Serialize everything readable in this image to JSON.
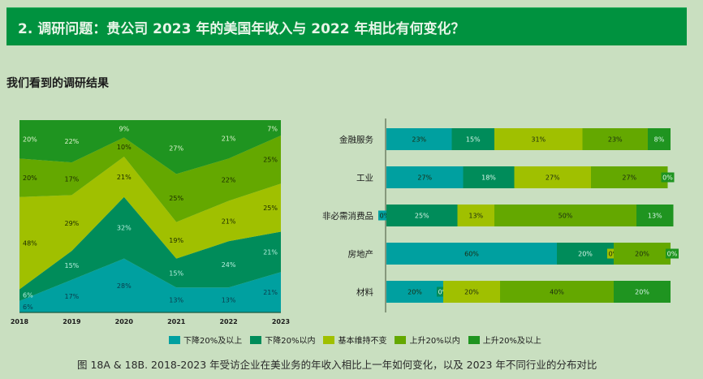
{
  "header": {
    "title": "2. 调研问题：贵公司 2023 年的美国年收入与 2022 年相比有何变化？"
  },
  "subtitle": "我们看到的调研结果",
  "legend": [
    {
      "label": "下降20%及以上",
      "color": "#00a0a0"
    },
    {
      "label": "下降20%以内",
      "color": "#008c5a"
    },
    {
      "label": "基本维持不变",
      "color": "#a0c000"
    },
    {
      "label": "上升20%以内",
      "color": "#64a800"
    },
    {
      "label": "上升20%及以上",
      "color": "#1f9420"
    }
  ],
  "caption": "图 18A & 18B. 2018-2023 年受访企业在美业务的年收入相比上一年如何变化，以及 2023 年不同行业的分布对比",
  "chart_data": [
    {
      "type": "area",
      "title": "",
      "xlabel": "",
      "ylabel": "",
      "x": [
        "2018",
        "2019",
        "2020",
        "2021",
        "2022",
        "2023"
      ],
      "ylim": [
        0,
        100
      ],
      "stacked": true,
      "series": [
        {
          "name": "下降20%及以上",
          "values": [
            6,
            17,
            28,
            13,
            13,
            21
          ],
          "label_color": "#0b3a4a"
        },
        {
          "name": "下降20%以内",
          "values": [
            6,
            15,
            32,
            15,
            24,
            21
          ],
          "label_color": "#b8f0e0"
        },
        {
          "name": "基本维持不变",
          "values": [
            48,
            29,
            21,
            19,
            21,
            25
          ],
          "label_color": "#1a2a00"
        },
        {
          "name": "上升20%以内",
          "values": [
            20,
            17,
            10,
            25,
            22,
            25
          ],
          "label_color": "#1a2a00"
        },
        {
          "name": "上升20%及以上",
          "values": [
            20,
            22,
            9,
            27,
            21,
            7
          ],
          "label_color": "#e0f5d0"
        }
      ]
    },
    {
      "type": "bar",
      "orientation": "horizontal",
      "stacked": true,
      "categories": [
        "金融服务",
        "工业",
        "非必需消费品",
        "房地产",
        "材料"
      ],
      "xlim": [
        0,
        100
      ],
      "series": [
        {
          "name": "下降20%及以上",
          "values": [
            23,
            27,
            0,
            60,
            20
          ]
        },
        {
          "name": "下降20%以内",
          "values": [
            15,
            18,
            25,
            20,
            0
          ]
        },
        {
          "name": "基本维持不变",
          "values": [
            31,
            27,
            13,
            0,
            20
          ]
        },
        {
          "name": "上升20%以内",
          "values": [
            23,
            27,
            50,
            20,
            40
          ]
        },
        {
          "name": "上升20%及以上",
          "values": [
            8,
            0,
            13,
            0,
            20
          ]
        }
      ]
    }
  ]
}
